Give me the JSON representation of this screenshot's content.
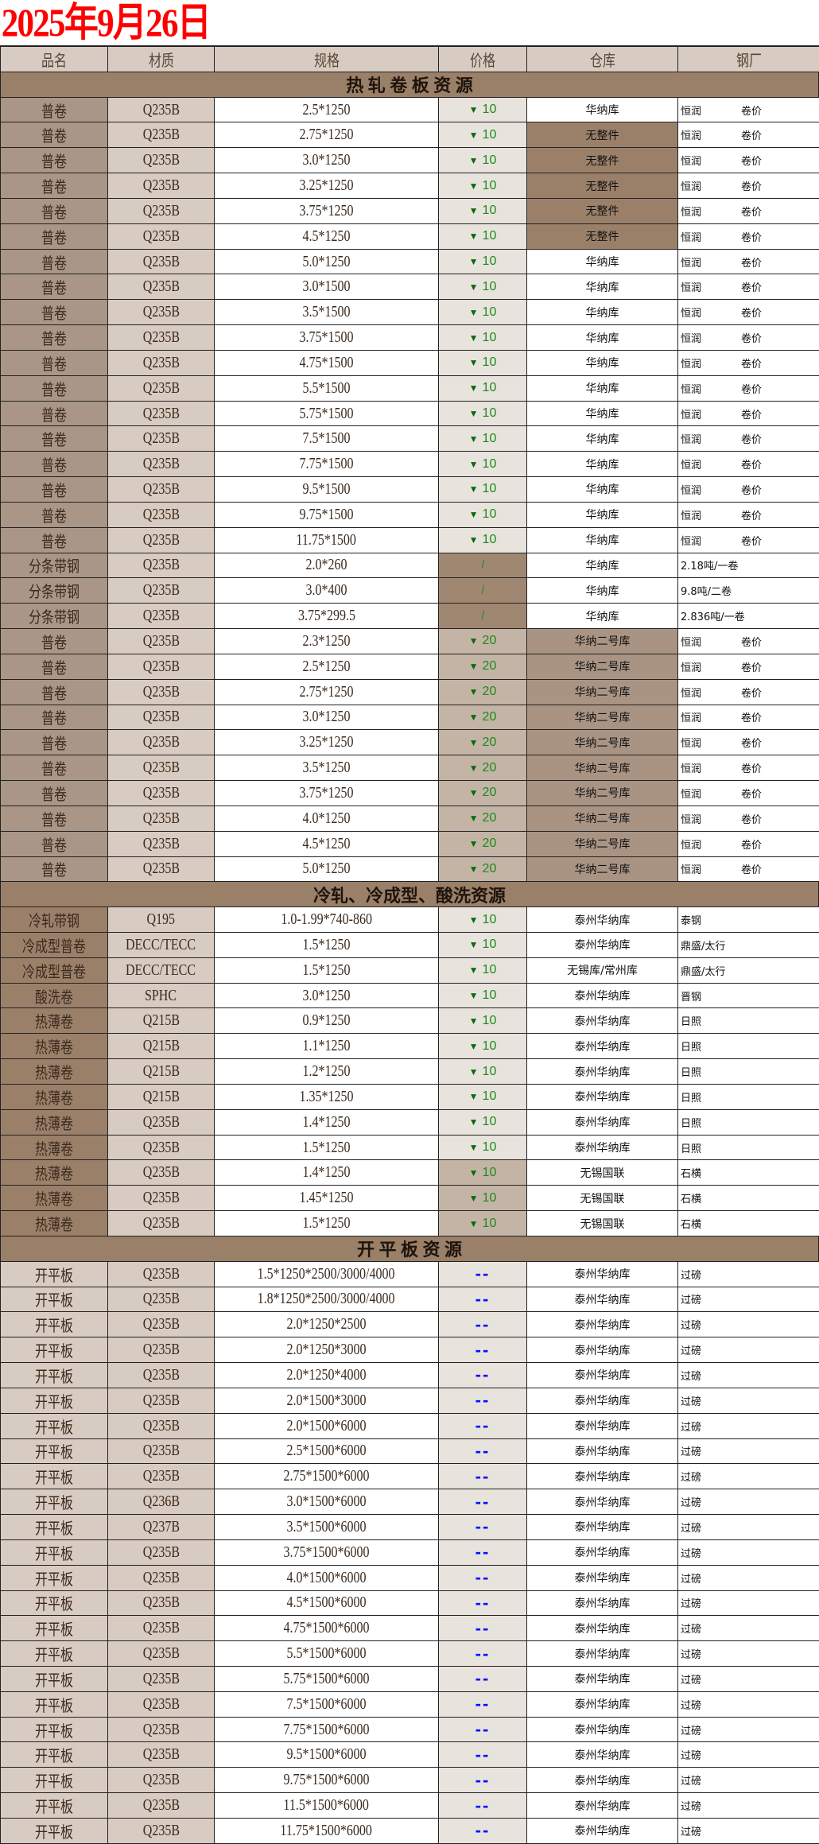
{
  "title": "2025年9月26日",
  "headers": [
    "品名",
    "材质",
    "规格",
    "价格",
    "仓库",
    "钢厂"
  ],
  "colors": {
    "title": "#ff0000",
    "price_down": "#1a8a1a",
    "dash": "#0010ff",
    "section_bg": "#9a7f69"
  },
  "sections": [
    {
      "title": "热 轧 卷 板 资 源",
      "rows": [
        {
          "name": "普卷",
          "material": "Q235B",
          "spec": "2.5*1250",
          "price": "10",
          "warehouse": "华纳库",
          "mill": "恒润",
          "note": "卷价"
        },
        {
          "name": "普卷",
          "material": "Q235B",
          "spec": "2.75*1250",
          "price": "10",
          "warehouse": "无整件",
          "mill": "恒润",
          "note": "卷价"
        },
        {
          "name": "普卷",
          "material": "Q235B",
          "spec": "3.0*1250",
          "price": "10",
          "warehouse": "无整件",
          "mill": "恒润",
          "note": "卷价"
        },
        {
          "name": "普卷",
          "material": "Q235B",
          "spec": "3.25*1250",
          "price": "10",
          "warehouse": "无整件",
          "mill": "恒润",
          "note": "卷价"
        },
        {
          "name": "普卷",
          "material": "Q235B",
          "spec": "3.75*1250",
          "price": "10",
          "warehouse": "无整件",
          "mill": "恒润",
          "note": "卷价"
        },
        {
          "name": "普卷",
          "material": "Q235B",
          "spec": "4.5*1250",
          "price": "10",
          "warehouse": "无整件",
          "mill": "恒润",
          "note": "卷价"
        },
        {
          "name": "普卷",
          "material": "Q235B",
          "spec": "5.0*1250",
          "price": "10",
          "warehouse": "华纳库",
          "mill": "恒润",
          "note": "卷价"
        },
        {
          "name": "普卷",
          "material": "Q235B",
          "spec": "3.0*1500",
          "price": "10",
          "warehouse": "华纳库",
          "mill": "恒润",
          "note": "卷价"
        },
        {
          "name": "普卷",
          "material": "Q235B",
          "spec": "3.5*1500",
          "price": "10",
          "warehouse": "华纳库",
          "mill": "恒润",
          "note": "卷价"
        },
        {
          "name": "普卷",
          "material": "Q235B",
          "spec": "3.75*1500",
          "price": "10",
          "warehouse": "华纳库",
          "mill": "恒润",
          "note": "卷价"
        },
        {
          "name": "普卷",
          "material": "Q235B",
          "spec": "4.75*1500",
          "price": "10",
          "warehouse": "华纳库",
          "mill": "恒润",
          "note": "卷价"
        },
        {
          "name": "普卷",
          "material": "Q235B",
          "spec": "5.5*1500",
          "price": "10",
          "warehouse": "华纳库",
          "mill": "恒润",
          "note": "卷价"
        },
        {
          "name": "普卷",
          "material": "Q235B",
          "spec": "5.75*1500",
          "price": "10",
          "warehouse": "华纳库",
          "mill": "恒润",
          "note": "卷价"
        },
        {
          "name": "普卷",
          "material": "Q235B",
          "spec": "7.5*1500",
          "price": "10",
          "warehouse": "华纳库",
          "mill": "恒润",
          "note": "卷价"
        },
        {
          "name": "普卷",
          "material": "Q235B",
          "spec": "7.75*1500",
          "price": "10",
          "warehouse": "华纳库",
          "mill": "恒润",
          "note": "卷价"
        },
        {
          "name": "普卷",
          "material": "Q235B",
          "spec": "9.5*1500",
          "price": "10",
          "warehouse": "华纳库",
          "mill": "恒润",
          "note": "卷价"
        },
        {
          "name": "普卷",
          "material": "Q235B",
          "spec": "9.75*1500",
          "price": "10",
          "warehouse": "华纳库",
          "mill": "恒润",
          "note": "卷价"
        },
        {
          "name": "普卷",
          "material": "Q235B",
          "spec": "11.75*1500",
          "price": "10",
          "warehouse": "华纳库",
          "mill": "恒润",
          "note": "卷价"
        },
        {
          "name": "分条带钢",
          "material": "Q235B",
          "spec": "2.0*260",
          "price": "/",
          "warehouse": "华纳库",
          "mill": "2.18吨/一卷",
          "note": ""
        },
        {
          "name": "分条带钢",
          "material": "Q235B",
          "spec": "3.0*400",
          "price": "/",
          "warehouse": "华纳库",
          "mill": "9.8吨/二卷",
          "note": ""
        },
        {
          "name": "分条带钢",
          "material": "Q235B",
          "spec": "3.75*299.5",
          "price": "/",
          "warehouse": "华纳库",
          "mill": "2.836吨/一卷",
          "note": ""
        },
        {
          "name": "普卷",
          "material": "Q235B",
          "spec": "2.3*1250",
          "price": "20",
          "warehouse": "华纳二号库",
          "mill": "恒润",
          "note": "卷价"
        },
        {
          "name": "普卷",
          "material": "Q235B",
          "spec": "2.5*1250",
          "price": "20",
          "warehouse": "华纳二号库",
          "mill": "恒润",
          "note": "卷价"
        },
        {
          "name": "普卷",
          "material": "Q235B",
          "spec": "2.75*1250",
          "price": "20",
          "warehouse": "华纳二号库",
          "mill": "恒润",
          "note": "卷价"
        },
        {
          "name": "普卷",
          "material": "Q235B",
          "spec": "3.0*1250",
          "price": "20",
          "warehouse": "华纳二号库",
          "mill": "恒润",
          "note": "卷价"
        },
        {
          "name": "普卷",
          "material": "Q235B",
          "spec": "3.25*1250",
          "price": "20",
          "warehouse": "华纳二号库",
          "mill": "恒润",
          "note": "卷价"
        },
        {
          "name": "普卷",
          "material": "Q235B",
          "spec": "3.5*1250",
          "price": "20",
          "warehouse": "华纳二号库",
          "mill": "恒润",
          "note": "卷价"
        },
        {
          "name": "普卷",
          "material": "Q235B",
          "spec": "3.75*1250",
          "price": "20",
          "warehouse": "华纳二号库",
          "mill": "恒润",
          "note": "卷价"
        },
        {
          "name": "普卷",
          "material": "Q235B",
          "spec": "4.0*1250",
          "price": "20",
          "warehouse": "华纳二号库",
          "mill": "恒润",
          "note": "卷价"
        },
        {
          "name": "普卷",
          "material": "Q235B",
          "spec": "4.5*1250",
          "price": "20",
          "warehouse": "华纳二号库",
          "mill": "恒润",
          "note": "卷价"
        },
        {
          "name": "普卷",
          "material": "Q235B",
          "spec": "5.0*1250",
          "price": "20",
          "warehouse": "华纳二号库",
          "mill": "恒润",
          "note": "卷价"
        }
      ]
    },
    {
      "title": "冷轧、冷成型、酸洗资源",
      "rows": [
        {
          "name": "冷轧带钢",
          "material": "Q195",
          "spec": "1.0-1.99*740-860",
          "price": "10",
          "warehouse": "泰州华纳库",
          "mill": "泰钢",
          "note": ""
        },
        {
          "name": "冷成型普卷",
          "material": "DECC/TECC",
          "spec": "1.5*1250",
          "price": "10",
          "warehouse": "泰州华纳库",
          "mill": "鼎盛/太行",
          "note": ""
        },
        {
          "name": "冷成型普卷",
          "material": "DECC/TECC",
          "spec": "1.5*1250",
          "price": "10",
          "warehouse": "无锡库/常州库",
          "mill": "鼎盛/太行",
          "note": ""
        },
        {
          "name": "酸洗卷",
          "material": "SPHC",
          "spec": "3.0*1250",
          "price": "10",
          "warehouse": "泰州华纳库",
          "mill": "晋钢",
          "note": ""
        },
        {
          "name": "热薄卷",
          "material": "Q215B",
          "spec": "0.9*1250",
          "price": "10",
          "warehouse": "泰州华纳库",
          "mill": "日照",
          "note": ""
        },
        {
          "name": "热薄卷",
          "material": "Q215B",
          "spec": "1.1*1250",
          "price": "10",
          "warehouse": "泰州华纳库",
          "mill": "日照",
          "note": ""
        },
        {
          "name": "热薄卷",
          "material": "Q215B",
          "spec": "1.2*1250",
          "price": "10",
          "warehouse": "泰州华纳库",
          "mill": "日照",
          "note": ""
        },
        {
          "name": "热薄卷",
          "material": "Q215B",
          "spec": "1.35*1250",
          "price": "10",
          "warehouse": "泰州华纳库",
          "mill": "日照",
          "note": ""
        },
        {
          "name": "热薄卷",
          "material": "Q235B",
          "spec": "1.4*1250",
          "price": "10",
          "warehouse": "泰州华纳库",
          "mill": "日照",
          "note": ""
        },
        {
          "name": "热薄卷",
          "material": "Q235B",
          "spec": "1.5*1250",
          "price": "10",
          "warehouse": "泰州华纳库",
          "mill": "日照",
          "note": ""
        },
        {
          "name": "热薄卷",
          "material": "Q235B",
          "spec": "1.4*1250",
          "price": "10",
          "warehouse": "无锡国联",
          "mill": "石横",
          "note": ""
        },
        {
          "name": "热薄卷",
          "material": "Q235B",
          "spec": "1.45*1250",
          "price": "10",
          "warehouse": "无锡国联",
          "mill": "石横",
          "note": ""
        },
        {
          "name": "热薄卷",
          "material": "Q235B",
          "spec": "1.5*1250",
          "price": "10",
          "warehouse": "无锡国联",
          "mill": "石横",
          "note": ""
        }
      ]
    },
    {
      "title": "开 平 板 资 源",
      "rows": [
        {
          "name": "开平板",
          "material": "Q235B",
          "spec": "1.5*1250*2500/3000/4000",
          "price": "--",
          "warehouse": "泰州华纳库",
          "mill": "过磅",
          "note": ""
        },
        {
          "name": "开平板",
          "material": "Q235B",
          "spec": "1.8*1250*2500/3000/4000",
          "price": "--",
          "warehouse": "泰州华纳库",
          "mill": "过磅",
          "note": ""
        },
        {
          "name": "开平板",
          "material": "Q235B",
          "spec": "2.0*1250*2500",
          "price": "--",
          "warehouse": "泰州华纳库",
          "mill": "过磅",
          "note": ""
        },
        {
          "name": "开平板",
          "material": "Q235B",
          "spec": "2.0*1250*3000",
          "price": "--",
          "warehouse": "泰州华纳库",
          "mill": "过磅",
          "note": ""
        },
        {
          "name": "开平板",
          "material": "Q235B",
          "spec": "2.0*1250*4000",
          "price": "--",
          "warehouse": "泰州华纳库",
          "mill": "过磅",
          "note": ""
        },
        {
          "name": "开平板",
          "material": "Q235B",
          "spec": "2.0*1500*3000",
          "price": "--",
          "warehouse": "泰州华纳库",
          "mill": "过磅",
          "note": ""
        },
        {
          "name": "开平板",
          "material": "Q235B",
          "spec": "2.0*1500*6000",
          "price": "--",
          "warehouse": "泰州华纳库",
          "mill": "过磅",
          "note": ""
        },
        {
          "name": "开平板",
          "material": "Q235B",
          "spec": "2.5*1500*6000",
          "price": "--",
          "warehouse": "泰州华纳库",
          "mill": "过磅",
          "note": ""
        },
        {
          "name": "开平板",
          "material": "Q235B",
          "spec": "2.75*1500*6000",
          "price": "--",
          "warehouse": "泰州华纳库",
          "mill": "过磅",
          "note": ""
        },
        {
          "name": "开平板",
          "material": "Q236B",
          "spec": "3.0*1500*6000",
          "price": "--",
          "warehouse": "泰州华纳库",
          "mill": "过磅",
          "note": ""
        },
        {
          "name": "开平板",
          "material": "Q237B",
          "spec": "3.5*1500*6000",
          "price": "--",
          "warehouse": "泰州华纳库",
          "mill": "过磅",
          "note": ""
        },
        {
          "name": "开平板",
          "material": "Q235B",
          "spec": "3.75*1500*6000",
          "price": "--",
          "warehouse": "泰州华纳库",
          "mill": "过磅",
          "note": ""
        },
        {
          "name": "开平板",
          "material": "Q235B",
          "spec": "4.0*1500*6000",
          "price": "--",
          "warehouse": "泰州华纳库",
          "mill": "过磅",
          "note": ""
        },
        {
          "name": "开平板",
          "material": "Q235B",
          "spec": "4.5*1500*6000",
          "price": "--",
          "warehouse": "泰州华纳库",
          "mill": "过磅",
          "note": ""
        },
        {
          "name": "开平板",
          "material": "Q235B",
          "spec": "4.75*1500*6000",
          "price": "--",
          "warehouse": "泰州华纳库",
          "mill": "过磅",
          "note": ""
        },
        {
          "name": "开平板",
          "material": "Q235B",
          "spec": "5.5*1500*6000",
          "price": "--",
          "warehouse": "泰州华纳库",
          "mill": "过磅",
          "note": ""
        },
        {
          "name": "开平板",
          "material": "Q235B",
          "spec": "5.75*1500*6000",
          "price": "--",
          "warehouse": "泰州华纳库",
          "mill": "过磅",
          "note": ""
        },
        {
          "name": "开平板",
          "material": "Q235B",
          "spec": "7.5*1500*6000",
          "price": "--",
          "warehouse": "泰州华纳库",
          "mill": "过磅",
          "note": ""
        },
        {
          "name": "开平板",
          "material": "Q235B",
          "spec": "7.75*1500*6000",
          "price": "--",
          "warehouse": "泰州华纳库",
          "mill": "过磅",
          "note": ""
        },
        {
          "name": "开平板",
          "material": "Q235B",
          "spec": "9.5*1500*6000",
          "price": "--",
          "warehouse": "泰州华纳库",
          "mill": "过磅",
          "note": ""
        },
        {
          "name": "开平板",
          "material": "Q235B",
          "spec": "9.75*1500*6000",
          "price": "--",
          "warehouse": "泰州华纳库",
          "mill": "过磅",
          "note": ""
        },
        {
          "name": "开平板",
          "material": "Q235B",
          "spec": "11.5*1500*6000",
          "price": "--",
          "warehouse": "泰州华纳库",
          "mill": "过磅",
          "note": ""
        },
        {
          "name": "开平板",
          "material": "Q235B",
          "spec": "11.75*1500*6000",
          "price": "--",
          "warehouse": "泰州华纳库",
          "mill": "过磅",
          "note": ""
        }
      ]
    }
  ]
}
